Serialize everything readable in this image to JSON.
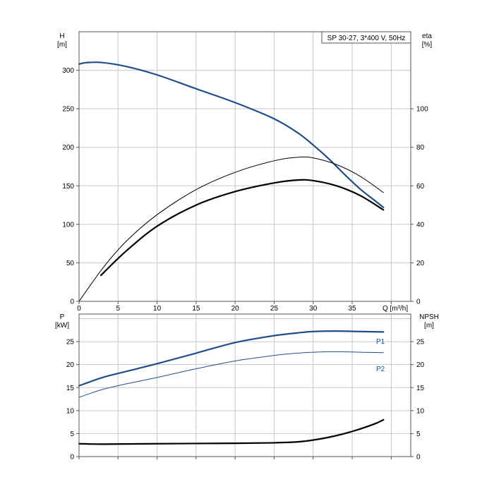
{
  "chart_data": [
    {
      "type": "line",
      "title": "SP 30-27, 3*400 V, 50Hz",
      "xlabel": "Q [m³/h]",
      "x_ticks": [
        "0",
        "5",
        "10",
        "15",
        "20",
        "25",
        "30",
        "35"
      ],
      "xlim": [
        0,
        42.5
      ],
      "left_axis": {
        "label_line1": "H",
        "label_line2": "[m]",
        "ylim": [
          0,
          350
        ],
        "ticks": [
          "0",
          "50",
          "100",
          "150",
          "200",
          "250",
          "300"
        ]
      },
      "right_axis": {
        "label_line1": "eta",
        "label_line2": "[%]",
        "ylim": [
          0,
          140
        ],
        "ticks": [
          "0",
          "20",
          "40",
          "60",
          "80",
          "100"
        ]
      },
      "grid": true,
      "series": [
        {
          "axis": "left",
          "color": "#1f4e8c",
          "width": 2.2,
          "x": [
            0,
            1,
            3,
            6,
            10,
            15,
            20,
            25,
            28,
            30,
            32,
            34,
            36,
            38,
            39
          ],
          "y": [
            308,
            310,
            310,
            305,
            294,
            276,
            258,
            237,
            219,
            203,
            185,
            165,
            146,
            130,
            122
          ]
        },
        {
          "axis": "right",
          "color": "#000000",
          "width": 1,
          "x": [
            0,
            3,
            6,
            10,
            15,
            20,
            25,
            28,
            30,
            33,
            36,
            39
          ],
          "y": [
            0,
            17,
            31,
            45,
            58,
            67,
            73,
            74.8,
            74.5,
            71,
            65,
            56.5
          ]
        },
        {
          "axis": "right",
          "color": "#000000",
          "width": 2.2,
          "x": [
            2.8,
            6,
            10,
            15,
            20,
            25,
            28,
            30,
            33,
            36,
            39
          ],
          "y": [
            13.5,
            26,
            39,
            50,
            57,
            61.5,
            63,
            62.7,
            60,
            55,
            47.5
          ]
        }
      ]
    },
    {
      "type": "line",
      "xlim": [
        0,
        42.5
      ],
      "x_ticks": [],
      "left_axis": {
        "label_line1": "P",
        "label_line2": "[kW]",
        "ylim": [
          0,
          31
        ],
        "ticks": [
          "0",
          "5",
          "10",
          "15",
          "20",
          "25"
        ]
      },
      "right_axis": {
        "label_line1": "NPSH",
        "label_line2": "[m]",
        "ylim": [
          0,
          31
        ],
        "ticks": [
          "0",
          "5",
          "10",
          "15",
          "20",
          "25"
        ]
      },
      "grid": true,
      "series": [
        {
          "name": "P1",
          "axis": "left",
          "color": "#1f4e8c",
          "width": 2.2,
          "x": [
            0,
            3,
            6,
            10,
            15,
            20,
            25,
            28,
            30,
            33,
            36,
            39
          ],
          "y": [
            15.4,
            17.2,
            18.5,
            20.2,
            22.5,
            24.8,
            26.3,
            26.9,
            27.2,
            27.3,
            27.2,
            27.1
          ]
        },
        {
          "name": "P2",
          "axis": "left",
          "color": "#1f4e8c",
          "width": 1,
          "x": [
            0,
            3,
            6,
            10,
            15,
            20,
            25,
            28,
            30,
            33,
            36,
            39
          ],
          "y": [
            12.9,
            14.6,
            15.8,
            17.2,
            19.1,
            20.8,
            22.0,
            22.5,
            22.7,
            22.8,
            22.7,
            22.6
          ]
        },
        {
          "axis": "right",
          "color": "#000000",
          "width": 2.2,
          "x": [
            0,
            3,
            10,
            20,
            25,
            28,
            30,
            32,
            34,
            36,
            38,
            39
          ],
          "y": [
            2.8,
            2.7,
            2.8,
            2.9,
            3.0,
            3.2,
            3.6,
            4.2,
            5.0,
            6.0,
            7.2,
            8.0
          ]
        }
      ]
    }
  ]
}
